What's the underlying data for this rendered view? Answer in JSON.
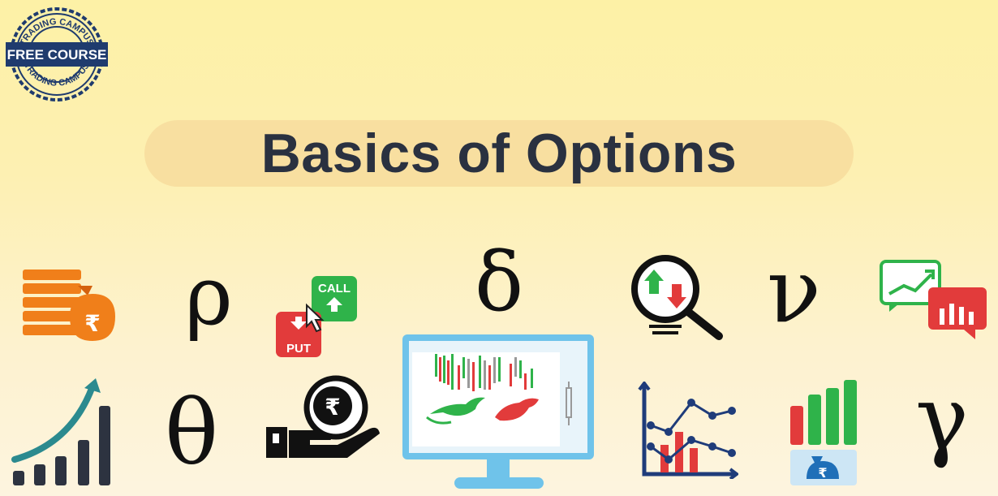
{
  "badge": {
    "label": "FREE COURSE",
    "ring_text_top": "TRADING CAMPUS",
    "ring_text_bottom": "TRADING CAMPUS"
  },
  "title": "Basics of Options",
  "greeks": {
    "rho": "ρ",
    "delta": "δ",
    "nu": "ν",
    "theta": "θ",
    "gamma": "γ"
  },
  "call_put": {
    "call_label": "CALL",
    "put_label": "PUT"
  },
  "currency_symbol": "₹",
  "colors": {
    "title_text": "#2a3140",
    "pill": "#f8dfa0",
    "orange": "#f07f1a",
    "green": "#2fb34a",
    "red": "#e23b3b",
    "navy": "#1f3c7a",
    "teal": "#2b8a8f"
  },
  "icons": [
    "money-stack-icon",
    "rho-symbol",
    "call-put-buttons-icon",
    "delta-symbol",
    "magnifier-exchange-icon",
    "vega-symbol",
    "chart-bubbles-icon",
    "growth-bars-icon",
    "theta-symbol",
    "hand-rupee-coin-icon",
    "trading-monitor-icon",
    "line-bar-chart-icon",
    "money-bag-bars-icon",
    "gamma-symbol"
  ]
}
